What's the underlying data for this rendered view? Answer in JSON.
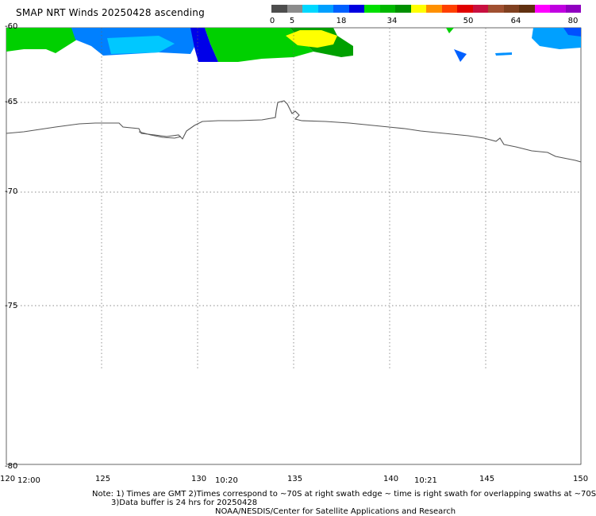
{
  "title": "SMAP NRT Winds 20250428 ascending",
  "colorbar": {
    "labels": [
      "0",
      "5",
      "18",
      "34",
      "50",
      "64",
      "80"
    ],
    "segments": [
      "#4d4d4d",
      "#8c8c8c",
      "#00d8ff",
      "#00a0ff",
      "#0060ff",
      "#0000e0",
      "#00e000",
      "#00b800",
      "#009000",
      "#ffff00",
      "#ff9000",
      "#ff4000",
      "#e00000",
      "#c81040",
      "#a05030",
      "#804020",
      "#603010",
      "#ff00ff",
      "#c000e0",
      "#9000c0"
    ]
  },
  "map": {
    "lat_labels": [
      "-60",
      "-65",
      "-70",
      "-75",
      "-80"
    ],
    "lon_labels": [
      "120",
      "125",
      "130",
      "135",
      "140",
      "145",
      "150"
    ]
  },
  "times": [
    "12:00",
    "10:20",
    "10:21"
  ],
  "notes": {
    "line1": "Note: 1) Times are GMT 2)Times correspond to ~70S at right swath edge ~ time is right swath for overlapping swaths at ~70S",
    "line2": "3)Data buffer is 24 hrs for 20250428",
    "line3": "NOAA/NESDIS/Center for Satellite Applications and Research"
  }
}
